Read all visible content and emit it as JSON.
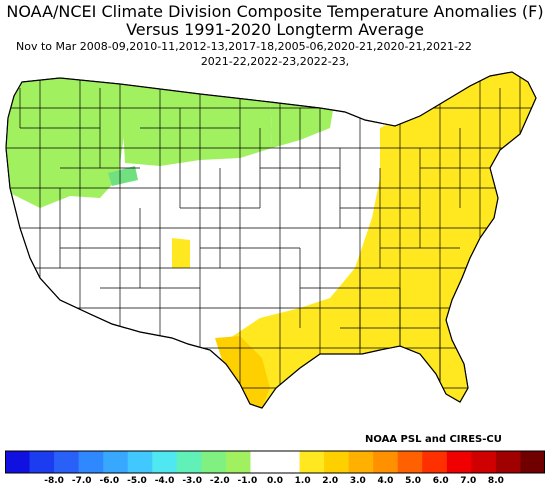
{
  "title_line1": "NOAA/NCEI Climate Division Composite Temperature Anomalies (F)",
  "title_line2": "Versus 1991-2020 Longterm Average",
  "subtitle_line1": "Nov to Mar  2008-09,2010-11,2012-13,2017-18,2005-06,2020-21,2020-21,2021-22",
  "subtitle_line2": "2021-22,2022-23,2022-23,",
  "credit": "NOAA PSL and CIRES-CU",
  "legend": {
    "ticks": [
      "-8.0",
      "-7.0",
      "-6.0",
      "-5.0",
      "-4.0",
      "-3.0",
      "-2.0",
      "-1.0",
      "0.0",
      "1.0",
      "2.0",
      "3.0",
      "4.0",
      "5.0",
      "6.0",
      "7.0",
      "8.0"
    ],
    "colors": [
      "#1010e0",
      "#1c3cf0",
      "#2860f8",
      "#3088ff",
      "#38a8ff",
      "#40c8ff",
      "#50e8f0",
      "#60f0b8",
      "#80f080",
      "#a0f060",
      "#ffffff",
      "#ffffff",
      "#ffe820",
      "#ffd000",
      "#ffb000",
      "#ff9000",
      "#ff6000",
      "#ff3000",
      "#f00000",
      "#d00000",
      "#a00000",
      "#700000"
    ]
  },
  "regions": [
    {
      "name": "pacific-northwest",
      "anomaly": "-1.0 to -0.5",
      "color": "#a0f060"
    },
    {
      "name": "northern-rockies-plains",
      "anomaly": "-1.0 to -0.5",
      "color": "#a0f060"
    },
    {
      "name": "upper-midwest",
      "anomaly": "-1.0 to -0.5",
      "color": "#a0f060"
    },
    {
      "name": "southwest-central",
      "anomaly": "-0.5 to 0.5",
      "color": "#ffffff"
    },
    {
      "name": "southeast-east",
      "anomaly": "0.5 to 1.0",
      "color": "#ffe820"
    },
    {
      "name": "texas-south",
      "anomaly": "1.0 to 2.0",
      "color": "#ffd000"
    }
  ]
}
